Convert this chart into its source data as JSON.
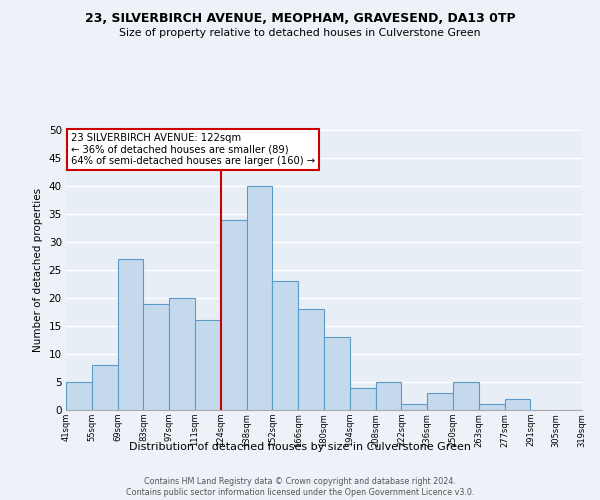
{
  "title1": "23, SILVERBIRCH AVENUE, MEOPHAM, GRAVESEND, DA13 0TP",
  "title2": "Size of property relative to detached houses in Culverstone Green",
  "xlabel": "Distribution of detached houses by size in Culverstone Green",
  "ylabel": "Number of detached properties",
  "bin_labels": [
    "41sqm",
    "55sqm",
    "69sqm",
    "83sqm",
    "97sqm",
    "111sqm",
    "124sqm",
    "138sqm",
    "152sqm",
    "166sqm",
    "180sqm",
    "194sqm",
    "208sqm",
    "222sqm",
    "236sqm",
    "250sqm",
    "263sqm",
    "277sqm",
    "291sqm",
    "305sqm",
    "319sqm"
  ],
  "bar_values": [
    5,
    8,
    27,
    19,
    20,
    16,
    34,
    40,
    23,
    18,
    13,
    4,
    5,
    1,
    3,
    5,
    1,
    2,
    0,
    0
  ],
  "bar_color": "#c5d9ec",
  "bar_edge_color": "#5b9bc8",
  "vline_x": 6,
  "vline_color": "#cc0000",
  "ylim": [
    0,
    50
  ],
  "yticks": [
    0,
    5,
    10,
    15,
    20,
    25,
    30,
    35,
    40,
    45,
    50
  ],
  "annotation_title": "23 SILVERBIRCH AVENUE: 122sqm",
  "annotation_line1": "← 36% of detached houses are smaller (89)",
  "annotation_line2": "64% of semi-detached houses are larger (160) →",
  "annotation_box_color": "#ffffff",
  "annotation_box_edge": "#cc0000",
  "footer1": "Contains HM Land Registry data © Crown copyright and database right 2024.",
  "footer2": "Contains public sector information licensed under the Open Government Licence v3.0.",
  "bg_color": "#eef2f8",
  "plot_bg_color": "#e8eef6",
  "grid_color": "#ffffff"
}
